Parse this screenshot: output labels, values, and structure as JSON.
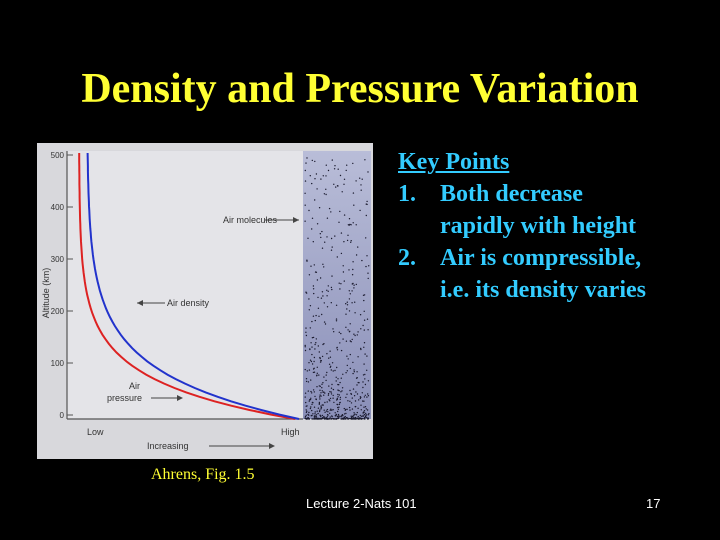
{
  "slide": {
    "title": "Density and Pressure Variation",
    "caption": "Ahrens, Fig. 1.5",
    "footer_center": "Lecture 2-Nats 101",
    "page_number": "17"
  },
  "key_points": {
    "heading": "Key Points",
    "items": [
      {
        "num": "1.",
        "lines": [
          "Both decrease",
          "rapidly with height"
        ]
      },
      {
        "num": "2.",
        "lines": [
          "Air is compressible,",
          "i.e. its density varies"
        ]
      }
    ]
  },
  "figure": {
    "ylabel": "Altitude (km)",
    "yticks": [
      "500",
      "400",
      "300",
      "200",
      "100",
      "0"
    ],
    "xlabel": "Increasing",
    "x_low": "Low",
    "x_high": "High",
    "labels": {
      "molecules": "Air molecules",
      "density": "Air density",
      "pressure_line1": "Air",
      "pressure_line2": "pressure"
    },
    "colors": {
      "density": "#2233cc",
      "pressure": "#dd2222"
    }
  }
}
